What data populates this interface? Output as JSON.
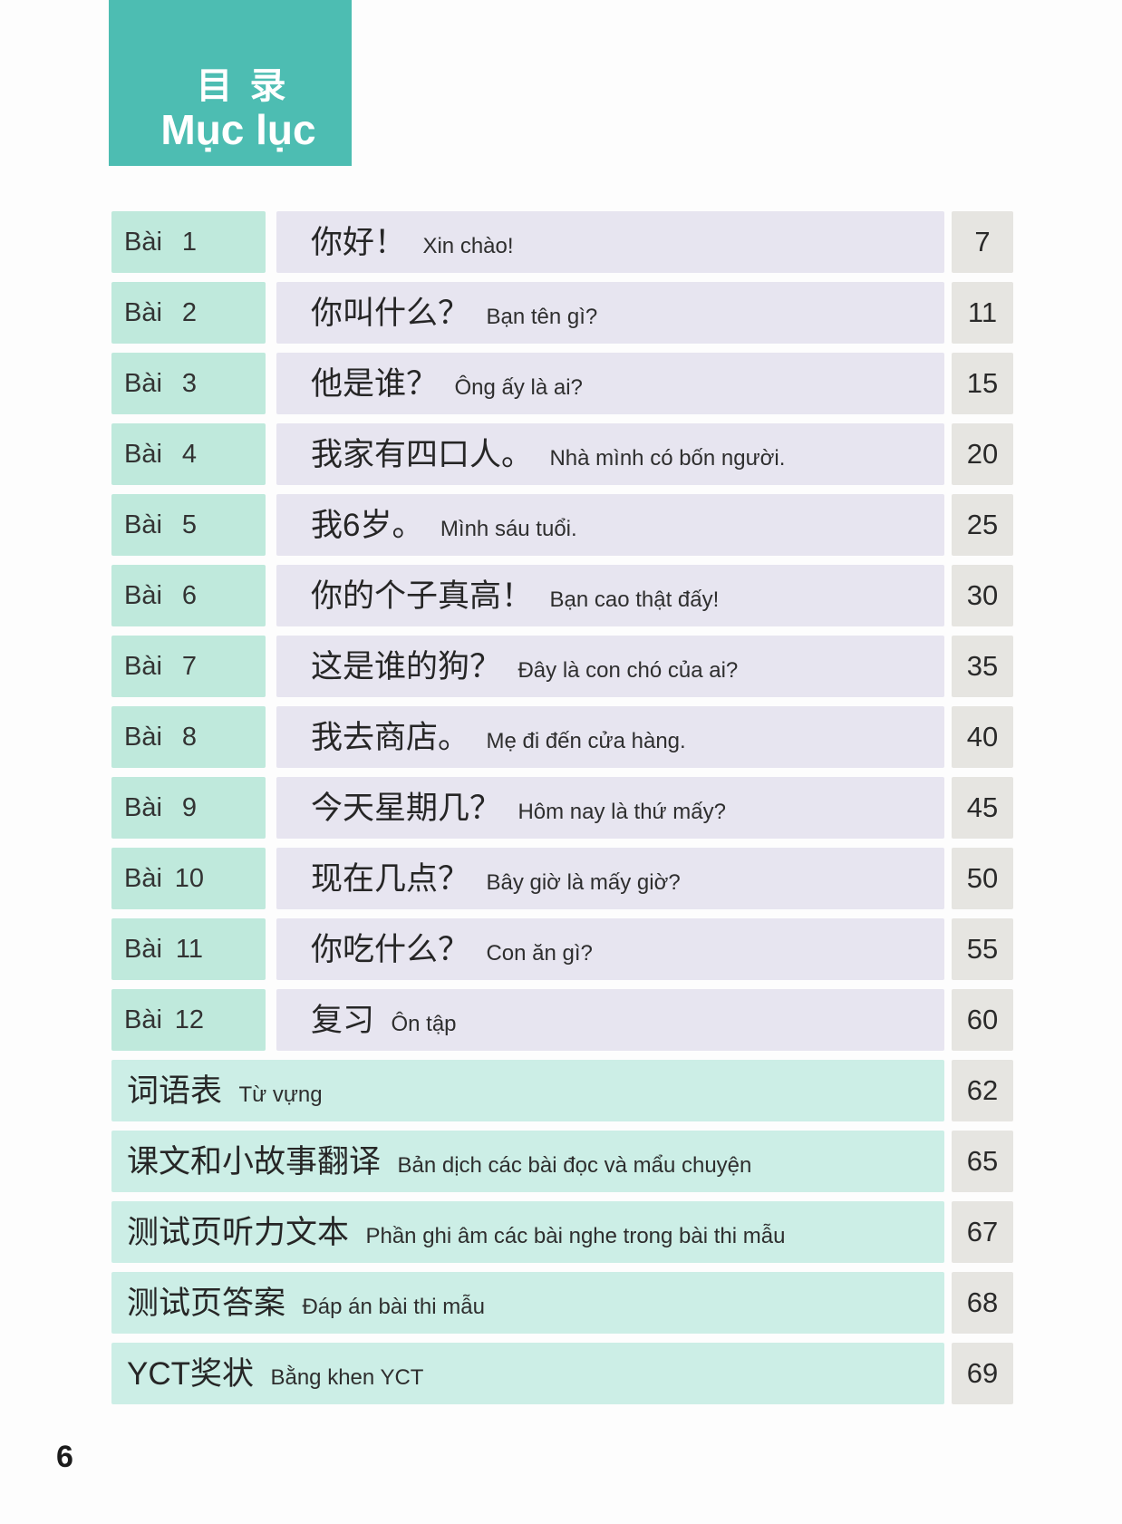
{
  "page": {
    "header": {
      "title_zh": "目 录",
      "title_vi": "Mục lục"
    },
    "footer_page_number": "6"
  },
  "colors": {
    "header_bg": "#4dbdb2",
    "lesson_label_bg": "#bfe9dc",
    "lesson_title_bg": "#e7e5f0",
    "section_bg": "#cceee6",
    "page_cell_bg": "#e6e5e1"
  },
  "toc": {
    "lesson_label": "Bài",
    "lessons": [
      {
        "number": "1",
        "title_zh": "你好！",
        "title_vi": "Xin chào!",
        "page": "7"
      },
      {
        "number": "2",
        "title_zh": "你叫什么？",
        "title_vi": "Bạn tên gì?",
        "page": "11"
      },
      {
        "number": "3",
        "title_zh": "他是谁？",
        "title_vi": "Ông ấy là ai?",
        "page": "15"
      },
      {
        "number": "4",
        "title_zh": "我家有四口人。",
        "title_vi": "Nhà mình có bốn người.",
        "page": "20"
      },
      {
        "number": "5",
        "title_zh": "我6岁。",
        "title_vi": "Mình sáu tuổi.",
        "page": "25"
      },
      {
        "number": "6",
        "title_zh": "你的个子真高！",
        "title_vi": "Bạn cao thật đấy!",
        "page": "30"
      },
      {
        "number": "7",
        "title_zh": "这是谁的狗？",
        "title_vi": "Đây là con chó của ai?",
        "page": "35"
      },
      {
        "number": "8",
        "title_zh": "我去商店。",
        "title_vi": "Mẹ đi đến cửa hàng.",
        "page": "40"
      },
      {
        "number": "9",
        "title_zh": "今天星期几？",
        "title_vi": "Hôm nay là thứ mấy?",
        "page": "45"
      },
      {
        "number": "10",
        "title_zh": "现在几点？",
        "title_vi": "Bây giờ là mấy giờ?",
        "page": "50"
      },
      {
        "number": "11",
        "title_zh": "你吃什么？",
        "title_vi": "Con ăn gì?",
        "page": "55"
      },
      {
        "number": "12",
        "title_zh": "复习",
        "title_vi": "Ôn tập",
        "page": "60"
      }
    ],
    "sections": [
      {
        "title_zh": "词语表",
        "title_vi": "Từ vựng",
        "page": "62"
      },
      {
        "title_zh": "课文和小故事翻译",
        "title_vi": "Bản dịch các bài đọc và mẩu chuyện",
        "page": "65"
      },
      {
        "title_zh": "测试页听力文本",
        "title_vi": "Phần ghi âm các bài nghe trong bài thi mẫu",
        "page": "67"
      },
      {
        "title_zh": "测试页答案",
        "title_vi": "Đáp án bài thi mẫu",
        "page": "68"
      },
      {
        "title_zh": "YCT奖状",
        "title_vi": "Bằng khen YCT",
        "page": "69"
      }
    ]
  }
}
